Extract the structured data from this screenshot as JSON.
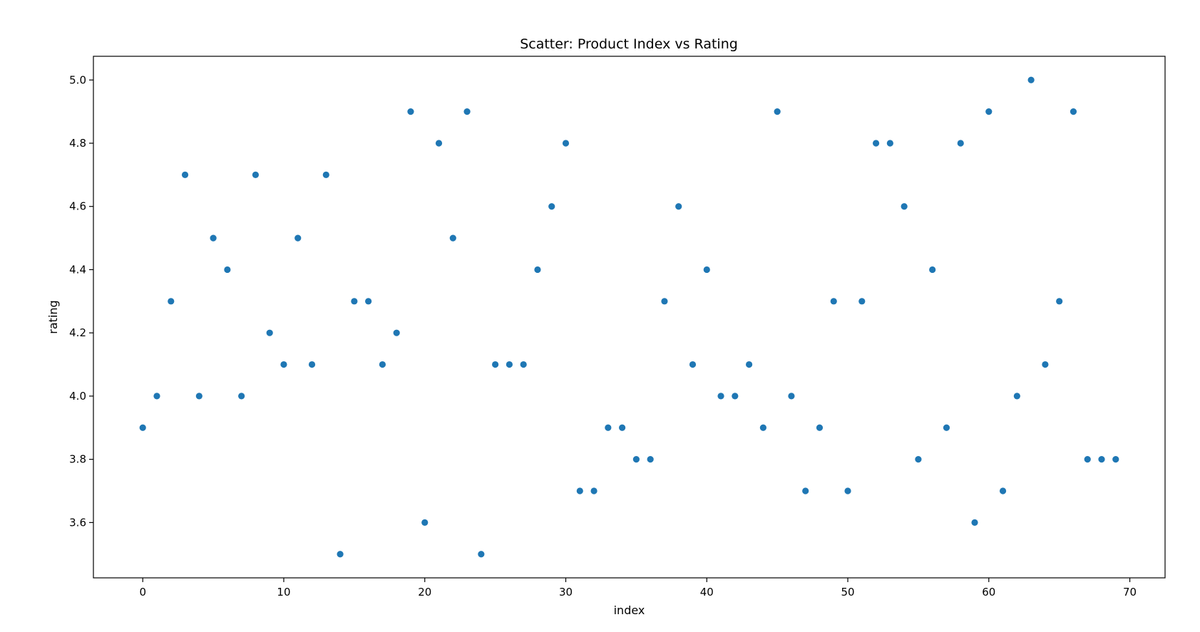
{
  "chart_data": {
    "type": "scatter",
    "title": "Scatter: Product Index vs Rating",
    "xlabel": "index",
    "ylabel": "rating",
    "xlim": [
      -3.5,
      72.5
    ],
    "ylim": [
      3.425,
      5.075
    ],
    "xticks": [
      0,
      10,
      20,
      30,
      40,
      50,
      60,
      70
    ],
    "yticks": [
      3.6,
      3.8,
      4.0,
      4.2,
      4.4,
      4.6,
      4.8,
      5.0
    ],
    "ytick_labels": [
      "3.6",
      "3.8",
      "4.0",
      "4.2",
      "4.4",
      "4.6",
      "4.8",
      "5.0"
    ],
    "grid": false,
    "marker_color": "#1f77b4",
    "x": [
      0,
      1,
      2,
      3,
      4,
      5,
      6,
      7,
      8,
      9,
      10,
      11,
      12,
      13,
      14,
      15,
      16,
      17,
      18,
      19,
      20,
      21,
      22,
      23,
      24,
      25,
      26,
      27,
      28,
      29,
      30,
      31,
      32,
      33,
      34,
      35,
      36,
      37,
      38,
      39,
      40,
      41,
      42,
      43,
      44,
      45,
      46,
      47,
      48,
      49,
      50,
      51,
      52,
      53,
      54,
      55,
      56,
      57,
      58,
      59,
      60,
      61,
      62,
      63,
      64,
      65,
      66,
      67,
      68,
      69
    ],
    "y": [
      3.9,
      4.0,
      4.3,
      4.7,
      4.0,
      4.5,
      4.4,
      4.0,
      4.7,
      4.2,
      4.1,
      4.5,
      4.1,
      4.7,
      3.5,
      4.3,
      4.3,
      4.1,
      4.2,
      4.9,
      3.6,
      4.8,
      4.5,
      4.9,
      3.5,
      4.1,
      4.1,
      4.1,
      4.4,
      4.6,
      4.8,
      3.7,
      3.7,
      3.9,
      3.9,
      3.8,
      3.8,
      4.3,
      4.6,
      4.1,
      4.4,
      4.0,
      4.0,
      4.1,
      3.9,
      4.9,
      4.0,
      3.7,
      3.9,
      4.3,
      3.7,
      4.3,
      4.8,
      4.8,
      4.6,
      3.8,
      4.4,
      3.9,
      4.8,
      3.6,
      4.9,
      3.7,
      4.0,
      5.0,
      4.1,
      4.3,
      4.9,
      3.8,
      3.8,
      3.8
    ]
  }
}
